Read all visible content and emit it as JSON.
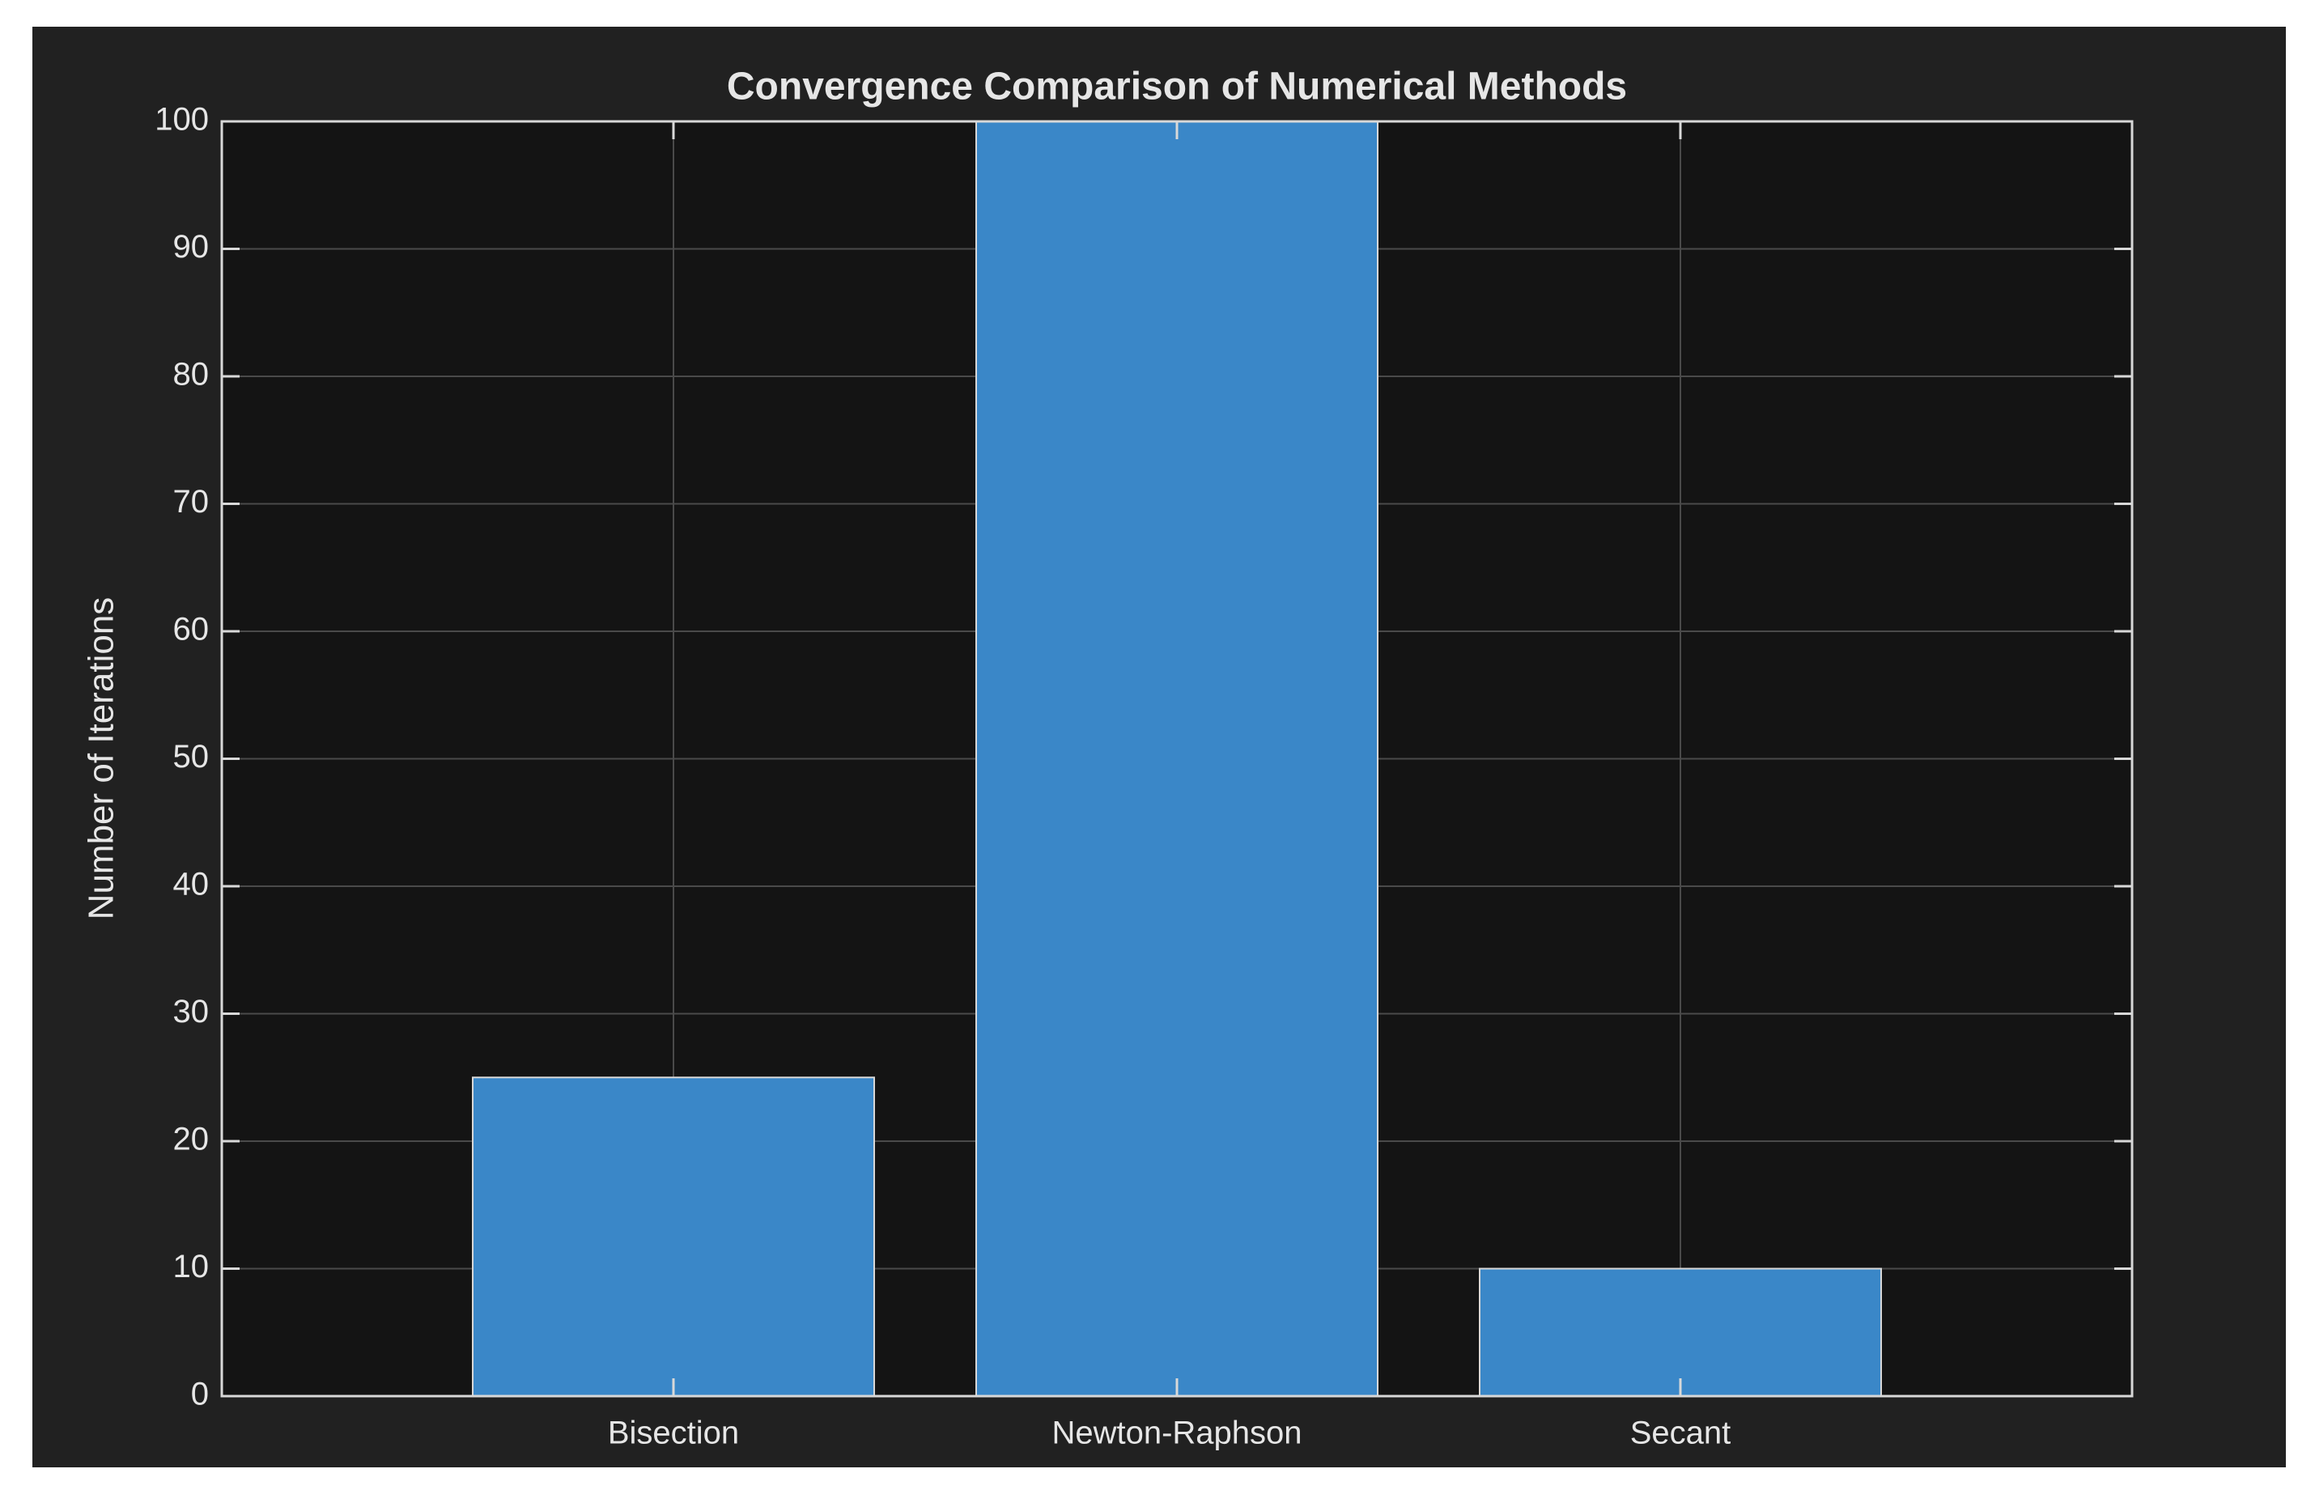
{
  "chart_data": {
    "type": "bar",
    "title": "Convergence Comparison of Numerical Methods",
    "y_label": "Number of Iterations",
    "categories": [
      "Bisection",
      "Newton-Raphson",
      "Secant"
    ],
    "values": [
      25,
      100,
      10
    ],
    "color": "#3a87c8",
    "ylim": [
      0,
      100
    ],
    "yticks": [
      0,
      10,
      20,
      30,
      40,
      50,
      60,
      70,
      80,
      90,
      100
    ],
    "grid": true
  }
}
